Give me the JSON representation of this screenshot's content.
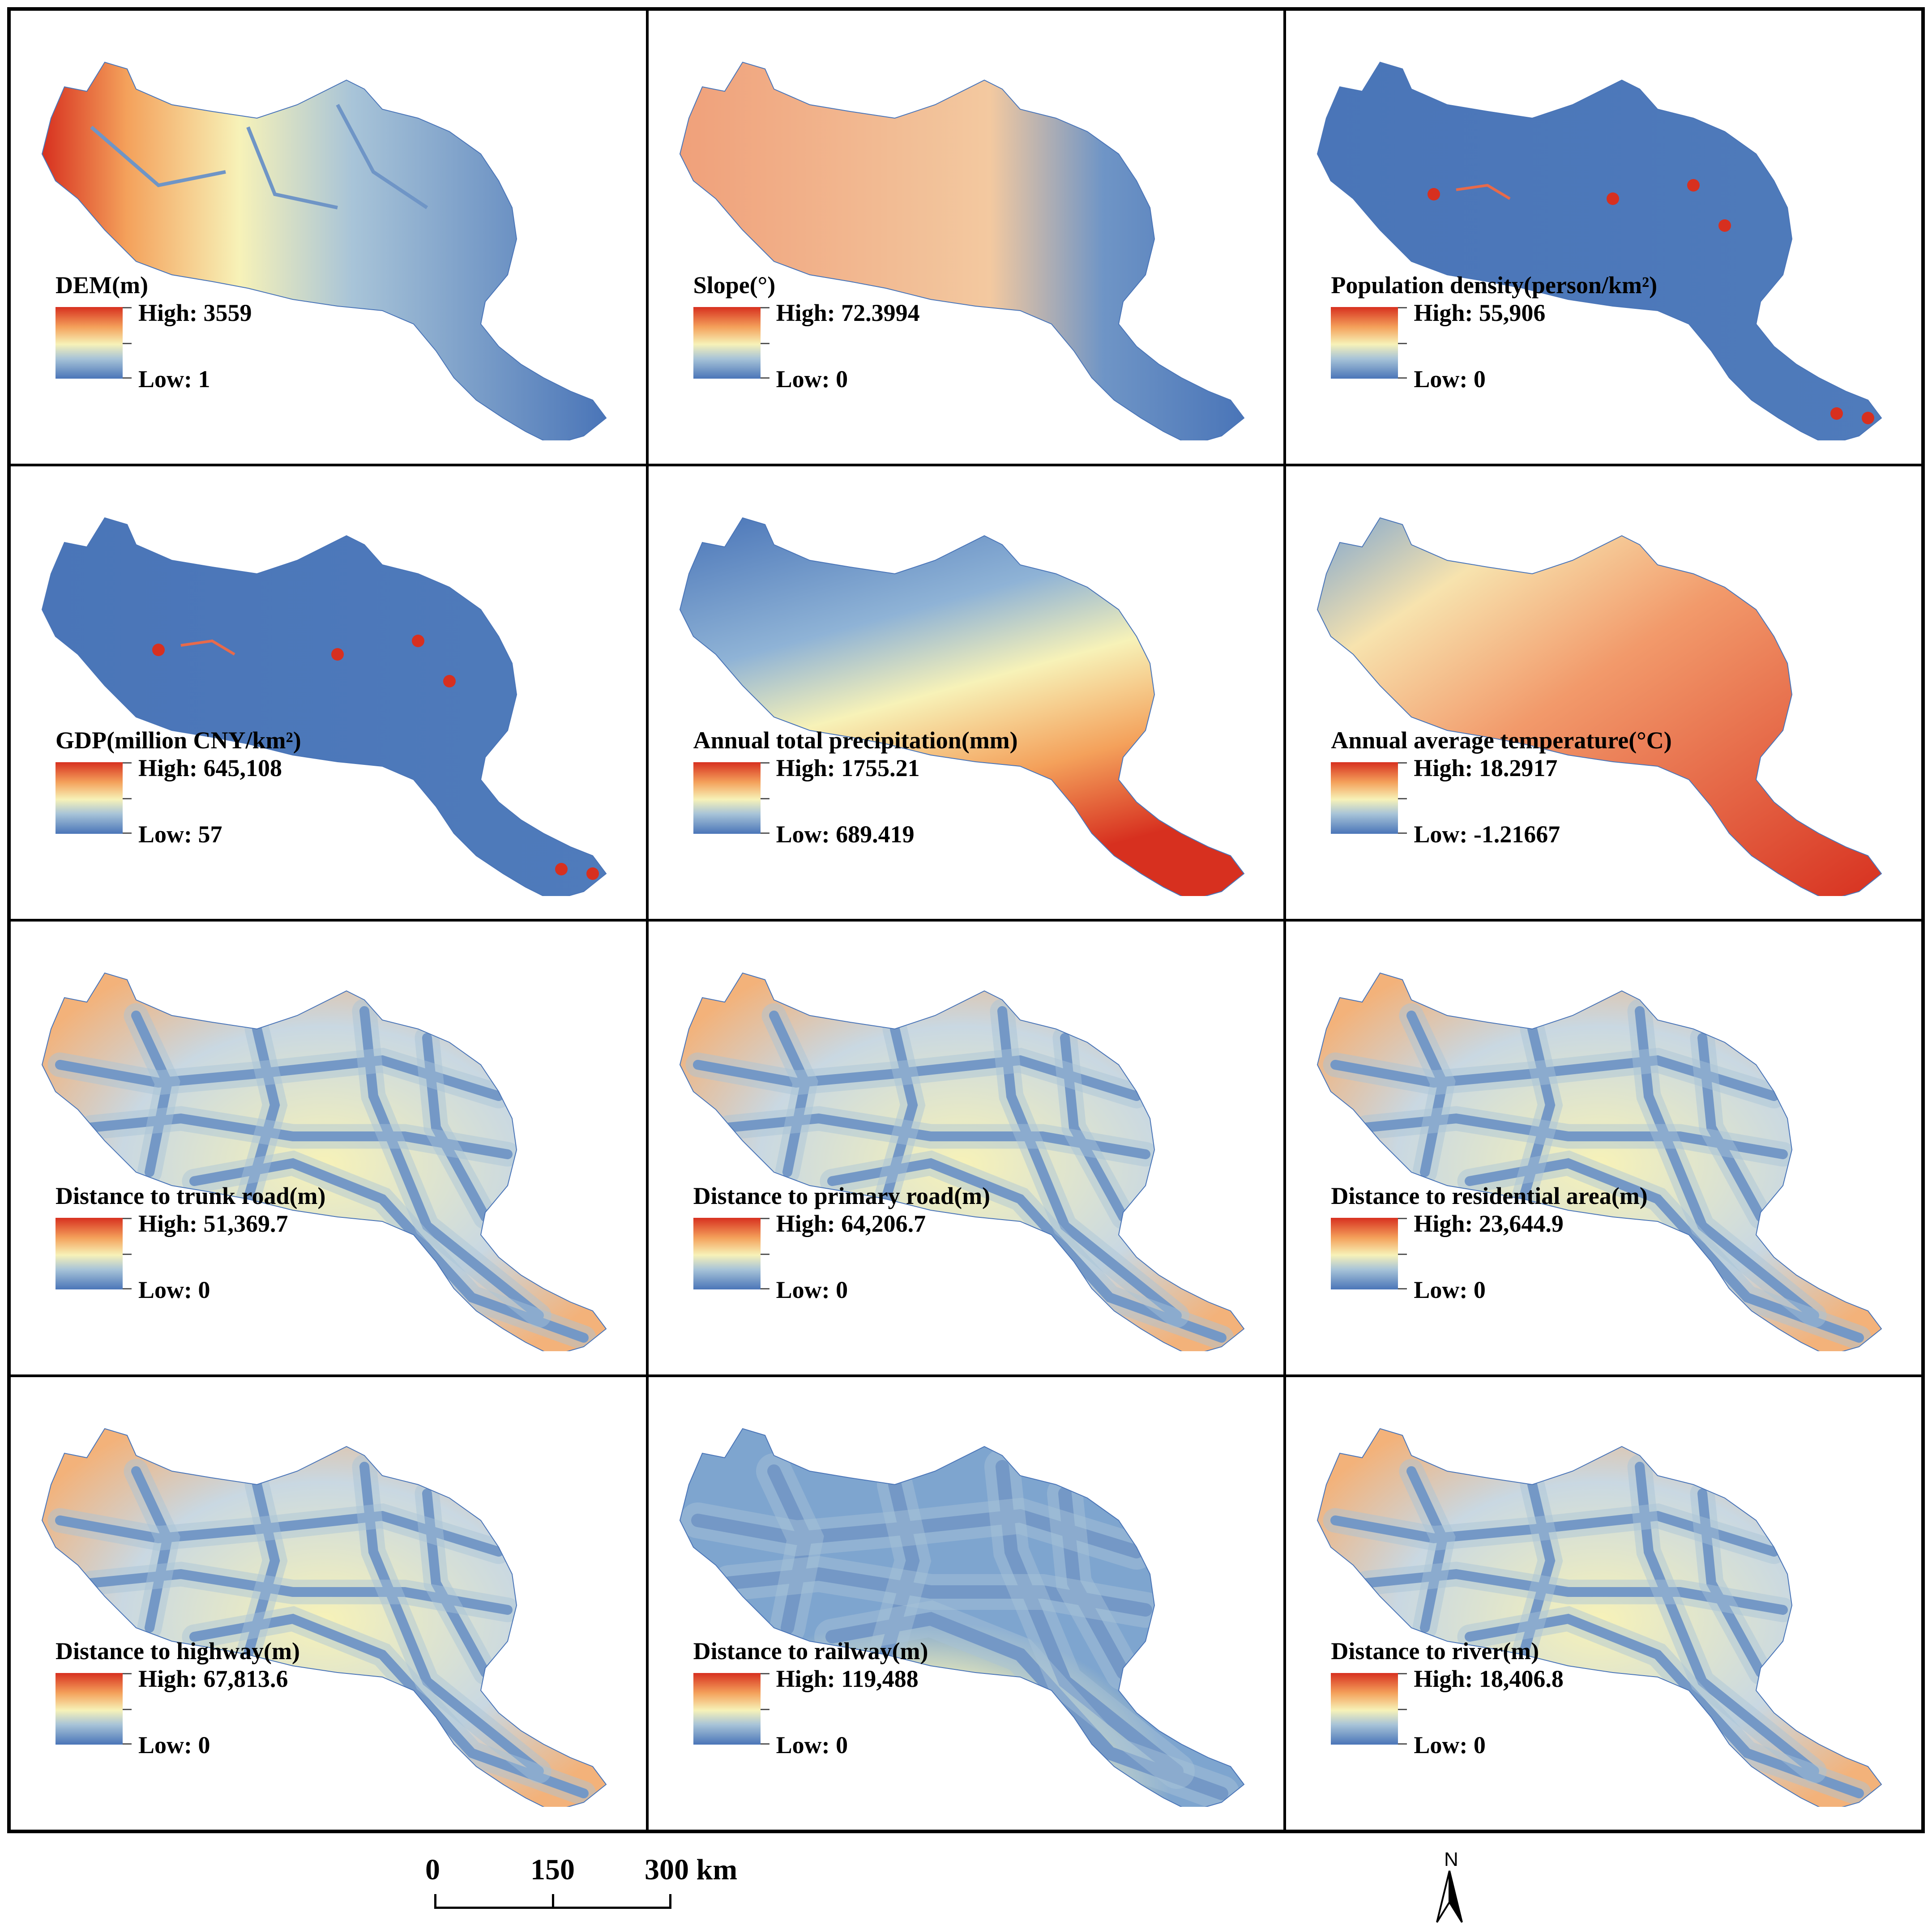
{
  "panels": [
    {
      "title": "DEM(m)",
      "high": "High: 3559",
      "low": "Low: 1",
      "fill": "dem"
    },
    {
      "title": "Slope(°)",
      "high": "High: 72.3994",
      "low": "Low: 0",
      "fill": "slope"
    },
    {
      "title": "Population density(person/km²)",
      "high": "High: 55,906",
      "low": "Low: 0",
      "fill": "pop"
    },
    {
      "title": "GDP(million CNY/km²)",
      "high": "High: 645,108",
      "low": "Low: 57",
      "fill": "gdp"
    },
    {
      "title": "Annual total precipitation(mm)",
      "high": "High: 1755.21",
      "low": "Low: 689.419",
      "fill": "precip"
    },
    {
      "title": "Annual average temperature(°C)",
      "high": "High: 18.2917",
      "low": "Low: -1.21667",
      "fill": "temp"
    },
    {
      "title": "Distance to trunk road(m)",
      "high": "High: 51,369.7",
      "low": "Low: 0",
      "fill": "dist"
    },
    {
      "title": "Distance to primary road(m)",
      "high": "High: 64,206.7",
      "low": "Low: 0",
      "fill": "dist"
    },
    {
      "title": "Distance to residential area(m)",
      "high": "High: 23,644.9",
      "low": "Low: 0",
      "fill": "dist"
    },
    {
      "title": "Distance to highway(m)",
      "high": "High: 67,813.6",
      "low": "Low: 0",
      "fill": "dist"
    },
    {
      "title": "Distance to railway(m)",
      "high": "High: 119,488",
      "low": "Low: 0",
      "fill": "rail"
    },
    {
      "title": "Distance to river(m)",
      "high": "High: 18,406.8",
      "low": "Low: 0",
      "fill": "dist"
    }
  ],
  "scale": {
    "t0": "0",
    "t1": "150",
    "t2": "300 km"
  },
  "north": {
    "label": "N"
  },
  "colors": {
    "high": "#d7301f",
    "mid": "#f7f2b8",
    "low": "#4a75b8"
  }
}
